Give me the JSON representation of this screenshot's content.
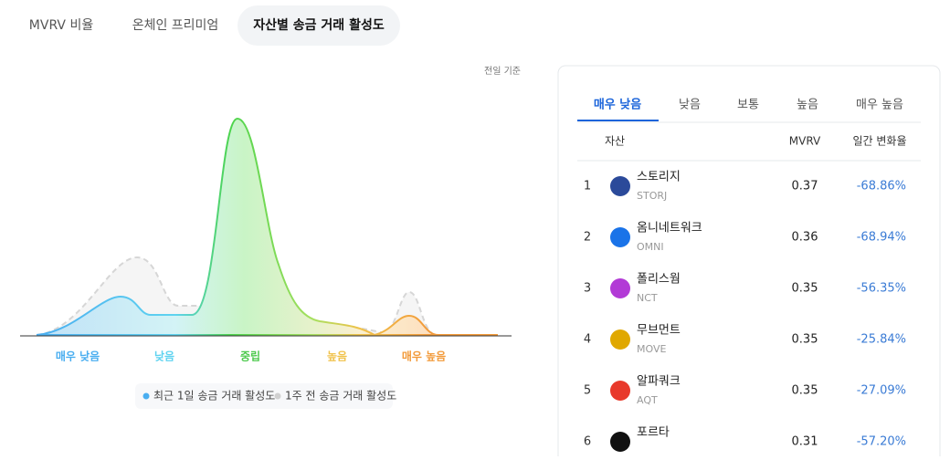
{
  "tabs": [
    "MVRV 비율",
    "온체인 프리미엄",
    "자산별 송금 거래 활성도"
  ],
  "chart": {
    "note": "전일 기준",
    "categories": [
      "매우 낮음",
      "낮음",
      "중립",
      "높음",
      "매우 높음"
    ],
    "legend": [
      "최근 1일 송금 거래 활성도",
      "1주 전 송금 거래 활성도"
    ]
  },
  "panel": {
    "tabs": [
      "매우 낮음",
      "낮음",
      "보통",
      "높음",
      "매우 높음"
    ],
    "header": [
      "자산",
      "MVRV",
      "일간 변화율"
    ],
    "rows": [
      {
        "rank": "1",
        "name": "스토리지",
        "ticker": "STORJ",
        "mvrv": "0.37",
        "change": "-68.86%"
      },
      {
        "rank": "2",
        "name": "옴니네트워크",
        "ticker": "OMNI",
        "mvrv": "0.36",
        "change": "-68.94%"
      },
      {
        "rank": "3",
        "name": "폴리스웜",
        "ticker": "NCT",
        "mvrv": "0.35",
        "change": "-56.35%"
      },
      {
        "rank": "4",
        "name": "무브먼트",
        "ticker": "MOVE",
        "mvrv": "0.35",
        "change": "-25.84%"
      },
      {
        "rank": "5",
        "name": "알파쿼크",
        "ticker": "AQT",
        "mvrv": "0.35",
        "change": "-27.09%"
      },
      {
        "rank": "6",
        "name": "포르타",
        "mvrv": "0.31",
        "change": "-57.20%"
      }
    ]
  }
}
